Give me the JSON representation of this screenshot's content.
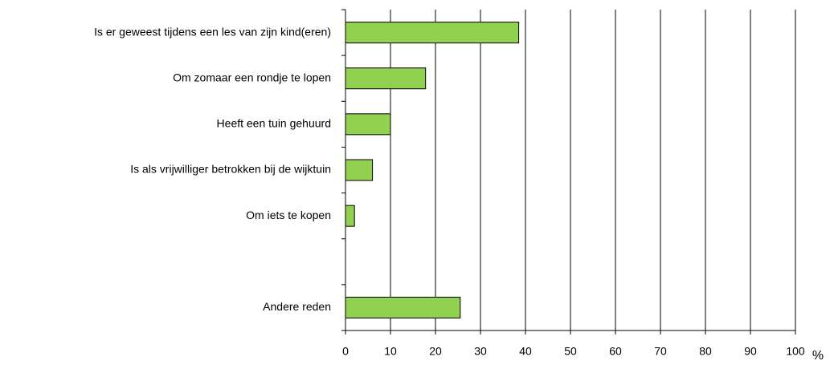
{
  "chart_data": {
    "type": "bar",
    "orientation": "horizontal",
    "categories": [
      "Is er geweest tijdens een les van zijn kind(eren)",
      "Om zomaar een rondje te lopen",
      "Heeft een tuin gehuurd",
      "Is als vrijwilliger betrokken bij de wijktuin",
      "Om iets te kopen",
      null,
      "Andere reden"
    ],
    "values": [
      38.5,
      17.8,
      10,
      6,
      2,
      null,
      25.5
    ],
    "color": "#92d050",
    "xlabel": "%",
    "xlim": [
      0,
      100
    ],
    "xticks": [
      0,
      10,
      20,
      30,
      40,
      50,
      60,
      70,
      80,
      90,
      100
    ],
    "grid": true
  }
}
